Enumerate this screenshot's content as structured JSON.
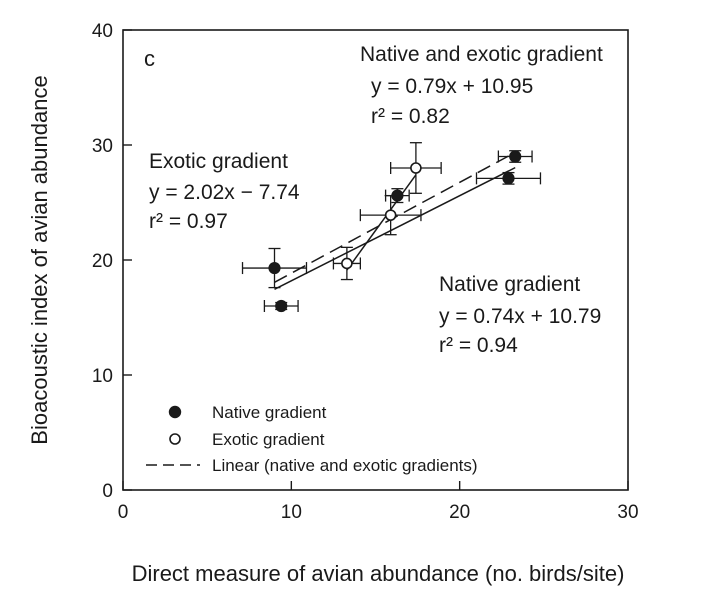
{
  "chart_data": {
    "type": "scatter",
    "panel_label": "c",
    "xlabel": "Direct measure of avian abundance (no. birds/site)",
    "ylabel": "Bioacoustic index of avian abundance",
    "xlim": [
      0,
      30
    ],
    "ylim": [
      0,
      40
    ],
    "xticks": [
      "0",
      "10",
      "20",
      "30"
    ],
    "yticks": [
      "0",
      "10",
      "20",
      "30",
      "40"
    ],
    "grid": false,
    "colors": {
      "ink": "#1a1a1a",
      "background": "#ffffff"
    },
    "series": [
      {
        "name": "Native gradient",
        "marker": "filled-circle",
        "points": [
          {
            "x": 9.0,
            "y": 19.3,
            "xerr": 1.9,
            "yerr": 1.7
          },
          {
            "x": 9.4,
            "y": 16.0,
            "xerr": 1.0,
            "yerr": 0.3
          },
          {
            "x": 16.3,
            "y": 25.6,
            "xerr": 0.7,
            "yerr": 0.6
          },
          {
            "x": 22.9,
            "y": 27.1,
            "xerr": 1.9,
            "yerr": 0.5
          },
          {
            "x": 23.3,
            "y": 29.0,
            "xerr": 1.0,
            "yerr": 0.5
          }
        ],
        "fit": {
          "equation": "y = 0.74x + 10.79",
          "r2": "r² = 0.94",
          "label": "Native gradient",
          "slope": 0.74,
          "intercept": 10.79,
          "x_range": [
            9.0,
            23.3
          ],
          "style": "solid"
        }
      },
      {
        "name": "Exotic gradient",
        "marker": "open-circle",
        "points": [
          {
            "x": 13.3,
            "y": 19.7,
            "xerr": 0.8,
            "yerr": 1.4
          },
          {
            "x": 15.9,
            "y": 23.9,
            "xerr": 1.8,
            "yerr": 1.7
          },
          {
            "x": 17.4,
            "y": 28.0,
            "xerr": 1.5,
            "yerr": 2.2
          }
        ],
        "fit": {
          "equation": "y = 2.02x − 7.74",
          "r2": "r² = 0.97",
          "label": "Exotic gradient",
          "slope": 2.02,
          "intercept": -7.74,
          "x_range": [
            13.3,
            17.4
          ],
          "style": "solid"
        }
      },
      {
        "name": "Linear (native and exotic gradients)",
        "marker": "none",
        "fit": {
          "equation": "y = 0.79x + 10.95",
          "r2": "r² = 0.82",
          "label": "Native and exotic gradient",
          "slope": 0.79,
          "intercept": 10.95,
          "x_range": [
            9.0,
            23.3
          ],
          "style": "dashed"
        }
      }
    ],
    "legend": {
      "placement": "bottom-left",
      "entries": [
        "Native gradient",
        "Exotic gradient",
        "Linear (native and exotic gradients)"
      ]
    }
  }
}
